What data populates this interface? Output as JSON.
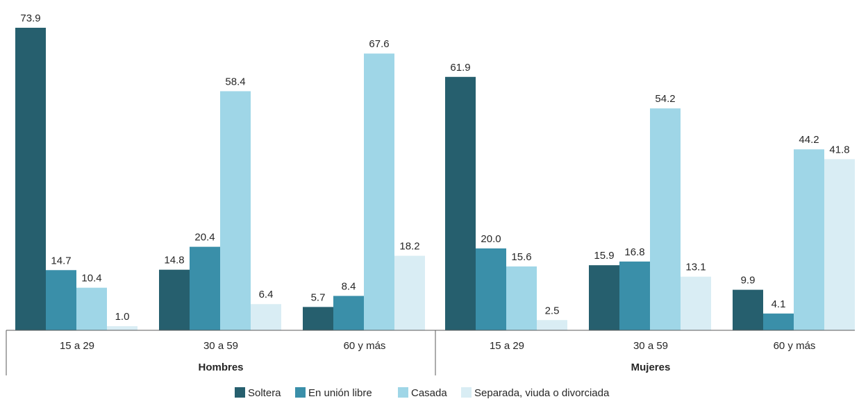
{
  "chart_data": {
    "type": "bar",
    "groups": [
      {
        "label": "Hombres",
        "categories": [
          "15 a 29",
          "30 a 59",
          "60 y más"
        ]
      },
      {
        "label": "Mujeres",
        "categories": [
          "15 a 29",
          "30 a 59",
          "60 y más"
        ]
      }
    ],
    "series": [
      {
        "name": "Soltera",
        "color": "#265f6e",
        "values": [
          73.9,
          14.8,
          5.7,
          61.9,
          15.9,
          9.9
        ]
      },
      {
        "name": "En unión libre",
        "color": "#3a8fa9",
        "values": [
          14.7,
          20.4,
          8.4,
          20.0,
          16.8,
          4.1
        ]
      },
      {
        "name": "Casada",
        "color": "#9fd6e7",
        "values": [
          10.4,
          58.4,
          67.6,
          15.6,
          54.2,
          44.2
        ]
      },
      {
        "name": "Separada, viuda o divorciada",
        "color": "#d9edf4",
        "values": [
          1.0,
          6.4,
          18.2,
          2.5,
          13.1,
          41.8
        ]
      }
    ],
    "value_labels": [
      [
        "73.9",
        "14.8",
        "5.7",
        "61.9",
        "15.9",
        "9.9"
      ],
      [
        "14.7",
        "20.4",
        "8.4",
        "20.0",
        "16.8",
        "4.1"
      ],
      [
        "10.4",
        "58.4",
        "67.6",
        "15.6",
        "54.2",
        "44.2"
      ],
      [
        "1.0",
        "6.4",
        "18.2",
        "2.5",
        "13.1",
        "41.8"
      ]
    ],
    "ylim": [
      0,
      80
    ],
    "grid": false,
    "legend_position": "bottom"
  }
}
